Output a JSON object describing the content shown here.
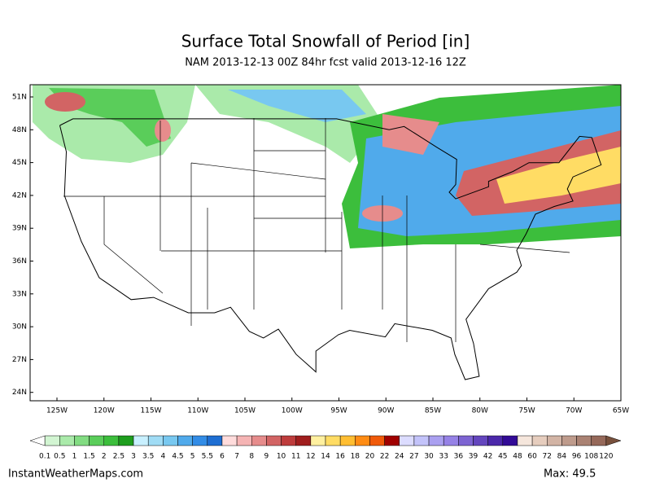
{
  "header": {
    "title": "Surface Total Snowfall of Period [in]",
    "subtitle": "NAM 2013-12-13 00Z 84hr fcst valid 2013-12-16 12Z"
  },
  "map": {
    "lat_labels": [
      "51N",
      "48N",
      "45N",
      "42N",
      "39N",
      "36N",
      "33N",
      "30N",
      "27N",
      "24N"
    ],
    "lon_labels": [
      "125W",
      "120W",
      "115W",
      "110W",
      "105W",
      "100W",
      "95W",
      "90W",
      "85W",
      "80W",
      "75W",
      "70W",
      "65W"
    ]
  },
  "colorbar": {
    "levels": [
      0.1,
      0.5,
      1,
      1.5,
      2,
      2.5,
      3,
      3.5,
      4,
      4.5,
      5,
      5.5,
      6,
      7,
      8,
      9,
      10,
      11,
      12,
      14,
      16,
      18,
      20,
      22,
      24,
      27,
      30,
      33,
      36,
      39,
      42,
      45,
      48,
      60,
      72,
      84,
      96,
      108,
      120
    ],
    "colors": [
      "#ffffff",
      "#d2f5d2",
      "#aaeaaa",
      "#82dc82",
      "#5acd5a",
      "#3cbe3c",
      "#1e9e1e",
      "#c8f0ff",
      "#a0dcf5",
      "#78c8f0",
      "#50aaeb",
      "#328ce6",
      "#1e6ed2",
      "#ffdcdc",
      "#f5b4b4",
      "#e68c8c",
      "#d26464",
      "#be3c3c",
      "#a01e1e",
      "#fff0a0",
      "#ffdc64",
      "#ffbe32",
      "#ff8c14",
      "#f05a0a",
      "#a00000",
      "#dcdcff",
      "#c3c3fa",
      "#aaa0f0",
      "#9682e6",
      "#7d64d2",
      "#6446be",
      "#4b28aa",
      "#320a96",
      "#f5e6dc",
      "#e6cdbe",
      "#d2b4a5",
      "#be9b8c",
      "#aa8273",
      "#96695a",
      "#78503c"
    ]
  },
  "footer": {
    "site": "InstantWeatherMaps.com",
    "max": "Max:  49.5"
  }
}
